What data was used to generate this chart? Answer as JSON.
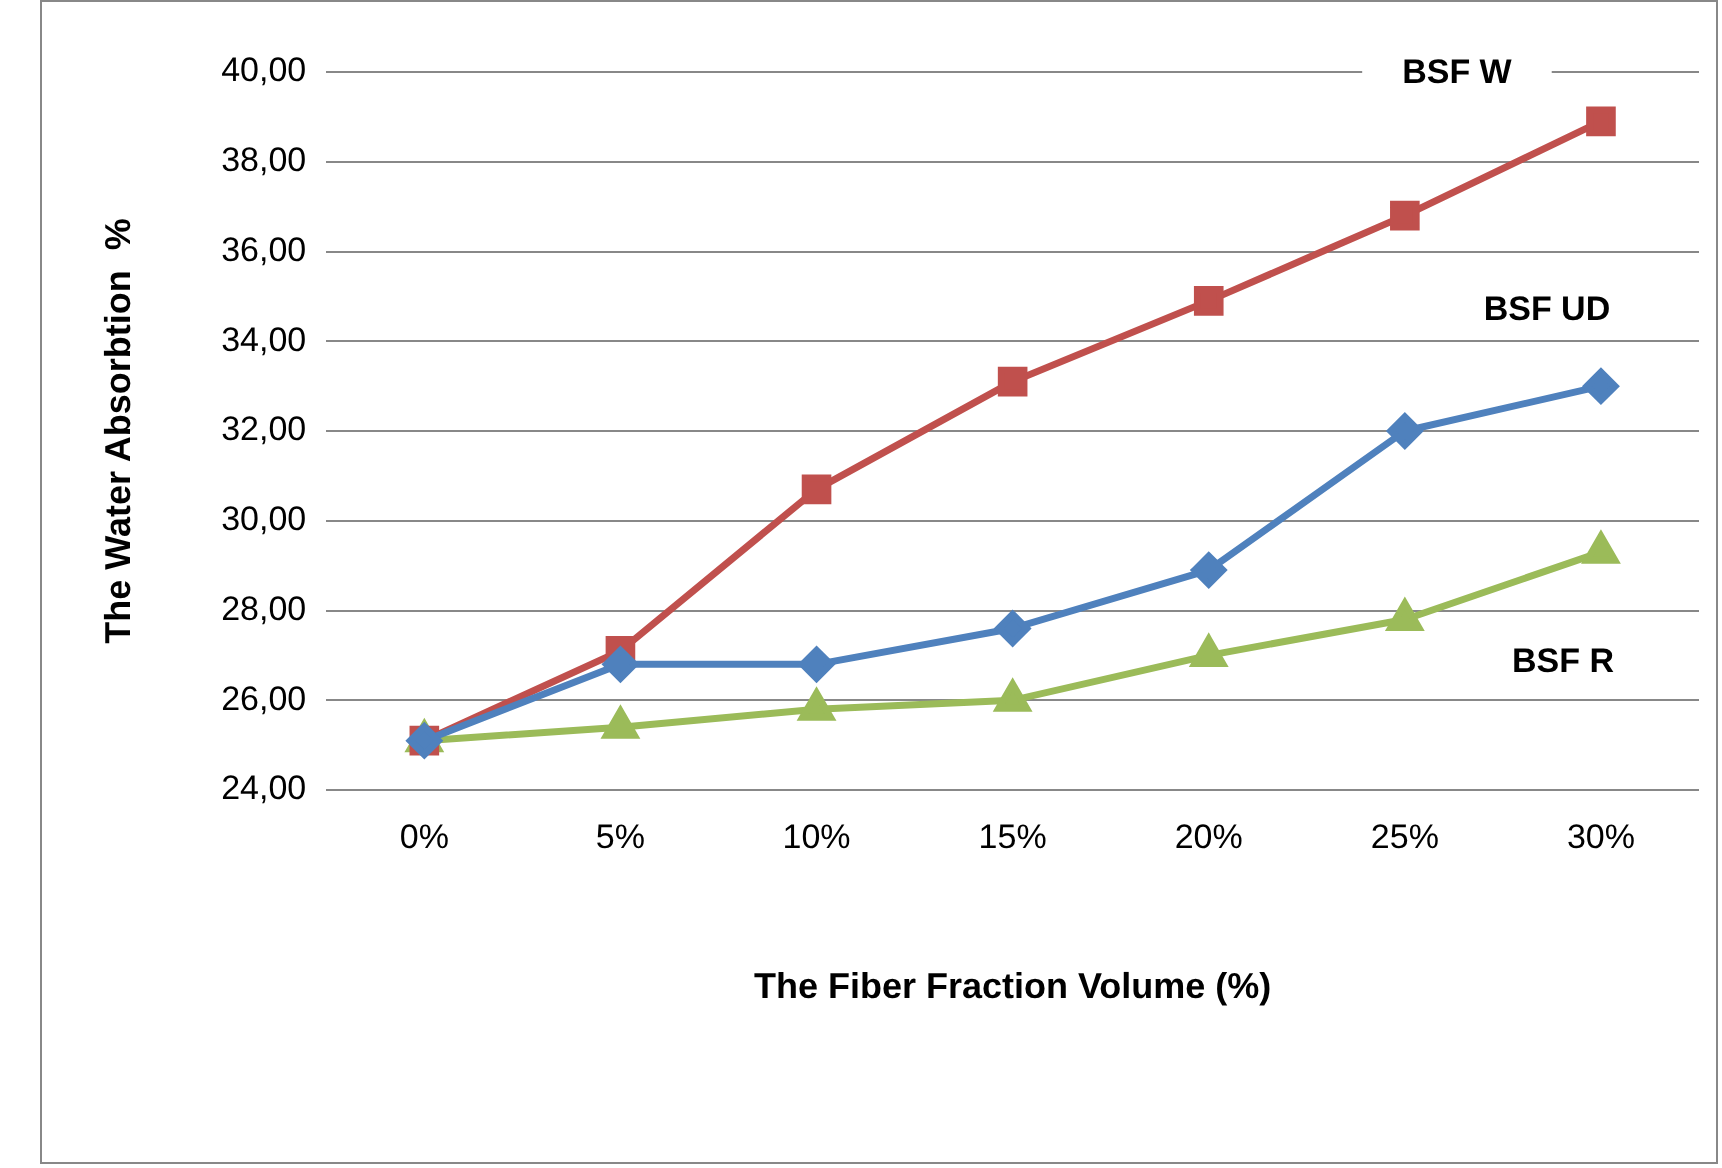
{
  "chart_data": {
    "type": "line",
    "xlabel": "The Fiber Fraction Volume (%)",
    "ylabel": "The Water Absorbtion  %",
    "categories": [
      "0%",
      "5%",
      "10%",
      "15%",
      "20%",
      "25%",
      "30%"
    ],
    "series": [
      {
        "name": "BSF UD",
        "color": "#4f81bd",
        "marker": "diamond",
        "values": [
          25.1,
          26.8,
          26.8,
          27.6,
          28.9,
          32.0,
          33.0
        ]
      },
      {
        "name": "BSF W",
        "color": "#c0504d",
        "marker": "square",
        "values": [
          25.1,
          27.1,
          30.7,
          33.1,
          34.9,
          36.8,
          38.9
        ]
      },
      {
        "name": "BSF R",
        "color": "#9bbb59",
        "marker": "triangle",
        "values": [
          25.1,
          25.4,
          25.8,
          26.0,
          27.0,
          27.8,
          29.3
        ]
      }
    ],
    "ylim": [
      24,
      40
    ],
    "yticks": [
      {
        "value": 24,
        "label": "24,00"
      },
      {
        "value": 26,
        "label": "26,00"
      },
      {
        "value": 28,
        "label": "28,00"
      },
      {
        "value": 30,
        "label": "30,00"
      },
      {
        "value": 32,
        "label": "32,00"
      },
      {
        "value": 34,
        "label": "34,00"
      },
      {
        "value": 36,
        "label": "36,00"
      },
      {
        "value": 38,
        "label": "38,00"
      },
      {
        "value": 40,
        "label": "40,00"
      }
    ],
    "grid": "y",
    "legend": false,
    "line_style": "solid"
  }
}
